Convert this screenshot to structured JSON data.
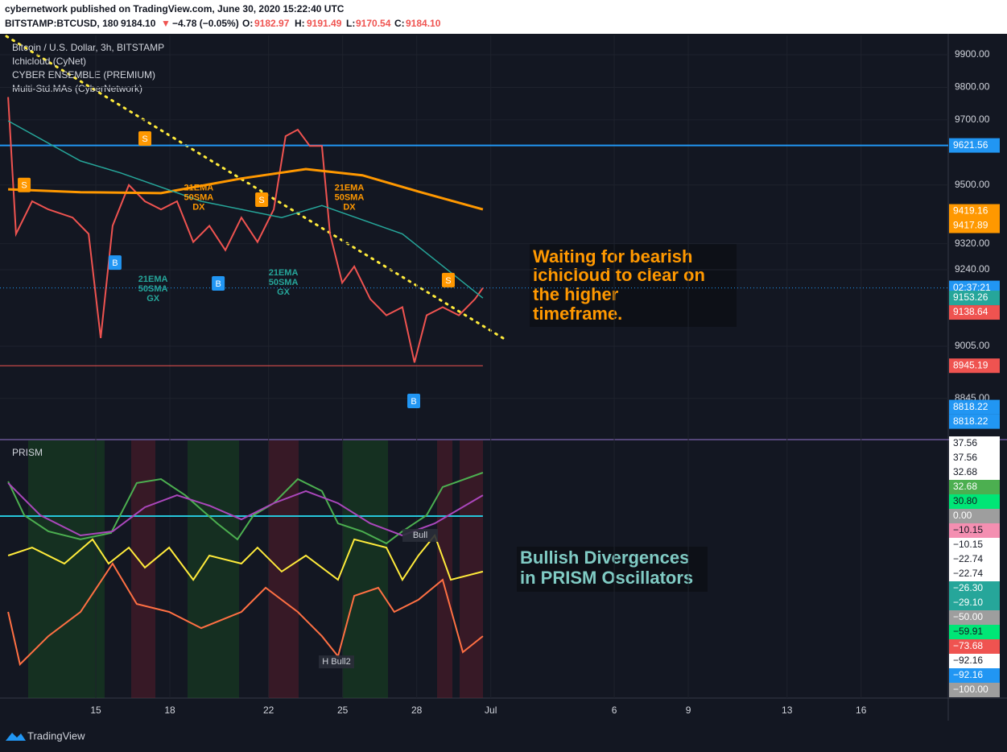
{
  "header": {
    "publisher": "cybernetwork published on TradingView.com, June 30, 2020 15:22:40 UTC",
    "symbol": "BITSTAMP:BTCUSD, 180",
    "last": "9184.10",
    "arrow": "▼",
    "change": "−4.78 (−0.05%)",
    "o_label": "O:",
    "o": "9182.97",
    "h_label": "H:",
    "h": "9191.49",
    "l_label": "L:",
    "l": "9170.54",
    "c_label": "C:",
    "c": "9184.10"
  },
  "legend": [
    "Ichicloud (CyNet)",
    "CYBER ENSEMBLE (PREMIUM)",
    "Multi-Std.MAs (CyberNetwork)"
  ],
  "footer": "TradingView",
  "chart_data": [
    {
      "type": "line",
      "xlim": [
        11.12,
        49.53
      ],
      "ylim": [
        8720.8,
        9959.3
      ],
      "yticks": [
        {
          "value": 9900,
          "label": "9900.00"
        },
        {
          "value": 9800,
          "label": "9800.00"
        },
        {
          "value": 9700,
          "label": "9700.00"
        },
        {
          "value": 9500,
          "label": "9500.00"
        },
        {
          "value": 9320,
          "label": "9320.00"
        },
        {
          "value": 9240,
          "label": "9240.00"
        },
        {
          "value": 9005,
          "label": "9005.00"
        },
        {
          "value": 8845,
          "label": "8845.00"
        }
      ],
      "grid": true,
      "series": [
        {
          "name": "Bitcoin / U.S. Dollar, 3h, BITSTAMP",
          "color": "#ef5350",
          "x": [
            11.45,
            11.77,
            12.42,
            13.08,
            14.06,
            14.71,
            15.2,
            15.68,
            16.34,
            16.99,
            17.64,
            18.29,
            18.95,
            19.6,
            20.25,
            20.9,
            21.55,
            22.21,
            22.69,
            23.18,
            23.67,
            24.16,
            24.49,
            24.98,
            25.47,
            26.12,
            26.77,
            27.42,
            27.91,
            28.4,
            29.05,
            29.71,
            30.36,
            30.68
          ],
          "values": [
            9770,
            9350,
            9450,
            9425,
            9400,
            9350,
            9030,
            9375,
            9500,
            9450,
            9425,
            9450,
            9325,
            9375,
            9300,
            9400,
            9325,
            9425,
            9650,
            9670,
            9620,
            9620,
            9350,
            9200,
            9250,
            9150,
            9100,
            9125,
            8955,
            9100,
            9125,
            9100,
            9150,
            9184.1
          ]
        },
        {
          "color": "#ff9800",
          "width": 3,
          "x": [
            11.45,
            14.38,
            17.64,
            20.9,
            23.51,
            25.8,
            28.07,
            30.68
          ],
          "values": [
            9487,
            9478,
            9475,
            9520,
            9549,
            9530,
            9480,
            9425
          ]
        },
        {
          "color": "#26a69a",
          "width": 1.5,
          "x": [
            11.45,
            14.38,
            16.01,
            19.27,
            22.53,
            24.16,
            27.42,
            30.68
          ],
          "values": [
            9697,
            9574,
            9537,
            9450,
            9400,
            9437,
            9350,
            9153
          ]
        }
      ],
      "levels": [
        {
          "value": 9621.56,
          "color": "#2196f3"
        },
        {
          "value": 8945.19,
          "color": "#ef5350"
        }
      ],
      "countdown": "02:37:21",
      "tags": [
        {
          "value": 9621.56,
          "label": "9621.56",
          "color": "#2196f3"
        },
        {
          "value": 9419.16,
          "label": "9419.16",
          "color": "#ff9800"
        },
        {
          "value": 9417.89,
          "label": "9417.89",
          "color": "#ff9800"
        },
        {
          "value": 9153.26,
          "label": "9153.26",
          "color": "#26a69a"
        },
        {
          "value": 9138.64,
          "label": "9138.64",
          "color": "#ef5350"
        },
        {
          "value": 8945.19,
          "label": "8945.19",
          "color": "#ef5350"
        },
        {
          "value": 8818.22,
          "label": "8818.22",
          "color": "#2196f3"
        },
        {
          "value": 8818.22,
          "label": "8818.22",
          "color": "#2196f3"
        }
      ],
      "signals": [
        {
          "label": "S",
          "x": 12.1,
          "price": 9500,
          "color": "#ff9800"
        },
        {
          "label": "S",
          "x": 16.99,
          "price": 9643,
          "color": "#ff9800"
        },
        {
          "label": "S",
          "x": 21.72,
          "price": 9455,
          "color": "#ff9800"
        },
        {
          "label": "S",
          "x": 29.28,
          "price": 9208,
          "color": "#ff9800"
        },
        {
          "label": "B",
          "x": 15.78,
          "price": 9262,
          "color": "#2196f3"
        },
        {
          "label": "B",
          "x": 19.96,
          "price": 9198,
          "color": "#2196f3"
        },
        {
          "label": "B",
          "x": 27.88,
          "price": 8837,
          "color": "#2196f3"
        }
      ],
      "cross_labels": [
        {
          "lines": [
            "21EMA",
            "50SMA",
            "DX"
          ],
          "x": 19.17,
          "price": 9490,
          "color": "#ff9800"
        },
        {
          "lines": [
            "21EMA",
            "50SMA",
            "DX"
          ],
          "x": 25.27,
          "price": 9490,
          "color": "#ff9800"
        },
        {
          "lines": [
            "21EMA",
            "50SMA",
            "GX"
          ],
          "x": 17.32,
          "price": 9210,
          "color": "#26a69a"
        },
        {
          "lines": [
            "21EMA",
            "50SMA",
            "GX"
          ],
          "x": 22.6,
          "price": 9230,
          "color": "#26a69a"
        }
      ],
      "annotation": [
        "Waiting for bearish",
        "ichicloud to clear on",
        "the higher",
        "timeframe."
      ]
    },
    {
      "type": "line",
      "title": "PRISM",
      "xlim": [
        11.12,
        49.53
      ],
      "ylim": [
        -104.6,
        43.5
      ],
      "xticks": [
        15,
        18,
        22,
        25,
        28,
        {
          "value": 31,
          "label": "Jul"
        },
        {
          "value": 36,
          "label": "6"
        },
        {
          "value": 39,
          "label": "9"
        },
        {
          "value": 43,
          "label": "13"
        },
        {
          "value": 46,
          "label": "16"
        }
      ],
      "series": [
        {
          "color": "#4caf50",
          "x": [
            11.45,
            12.1,
            13.08,
            14.38,
            15.62,
            16.66,
            17.64,
            18.62,
            19.92,
            20.74,
            21.39,
            22.21,
            23.18,
            24.16,
            24.81,
            25.79,
            26.77,
            27.42,
            28.4,
            29.05,
            30.68
          ],
          "values": [
            19.9,
            0.5,
            -8.8,
            -13.4,
            -9.7,
            19,
            21.3,
            12,
            -4.2,
            -13.4,
            0.5,
            7.4,
            21.3,
            14.4,
            -4.2,
            -8.8,
            -15.7,
            -8.8,
            0.5,
            16.7,
            25
          ]
        },
        {
          "color": "#ab47bc",
          "x": [
            11.45,
            12.75,
            14.38,
            15.68,
            16.99,
            18.29,
            19.6,
            20.9,
            22.21,
            23.51,
            24.81,
            26.12,
            27.42,
            28.73,
            30.68
          ],
          "values": [
            19,
            0.5,
            -11.1,
            -8.8,
            5.1,
            12,
            6,
            -1.9,
            7.4,
            14.4,
            7.4,
            -4.2,
            -11.1,
            -4.2,
            12
          ]
        },
        {
          "color": "#ffeb3b",
          "x": [
            11.45,
            12.42,
            13.73,
            14.87,
            15.52,
            16.34,
            16.99,
            17.97,
            18.95,
            19.6,
            20.9,
            21.55,
            22.53,
            23.51,
            24.81,
            25.47,
            26.77,
            27.42,
            28.07,
            28.73,
            29.38,
            30.68
          ],
          "values": [
            -22.7,
            -18.1,
            -27.3,
            -13.4,
            -27.3,
            -18.1,
            -29.6,
            -18.1,
            -36.6,
            -22.7,
            -27.3,
            -18.1,
            -31.9,
            -22.7,
            -36.6,
            -13.4,
            -18.1,
            -36.6,
            -22.7,
            -11.1,
            -36.6,
            -31.9
          ]
        },
        {
          "color": "#ff7043",
          "x": [
            11.45,
            11.93,
            13.08,
            14.38,
            15.68,
            16.66,
            17.97,
            19.27,
            20.9,
            21.88,
            23.18,
            24.16,
            24.81,
            25.47,
            26.44,
            27.09,
            28.07,
            29.05,
            29.87,
            30.68
          ],
          "values": [
            -55.1,
            -85.2,
            -69,
            -55.1,
            -27.3,
            -50.5,
            -55.1,
            -64.4,
            -55.1,
            -41.2,
            -55.1,
            -69,
            -80.6,
            -45.8,
            -41.2,
            -55.1,
            -48.1,
            -36.6,
            -78.2,
            -69
          ]
        }
      ],
      "levels": [
        {
          "value": 0,
          "color": "#26c6da"
        }
      ],
      "notes": [
        {
          "text": "Bull",
          "x": 28.14,
          "value": -11.1
        },
        {
          "text": "H Bull2",
          "x": 24.75,
          "value": -83.8
        }
      ],
      "tags": [
        {
          "value": 37.56,
          "label": "37.56",
          "color": "#ffffff"
        },
        {
          "value": 37.56,
          "label": "37.56",
          "color": "#ffffff"
        },
        {
          "value": 32.68,
          "label": "32.68",
          "color": "#ffffff"
        },
        {
          "value": 32.68,
          "label": "32.68",
          "color": "#4caf50"
        },
        {
          "value": 30.8,
          "label": "30.80",
          "color": "#00e676"
        },
        {
          "value": 0,
          "label": "0.00",
          "color": "#9e9e9e"
        },
        {
          "value": -10.15,
          "label": "−10.15",
          "color": "#f48fb1"
        },
        {
          "value": -10.15,
          "label": "−10.15",
          "color": "#ffffff"
        },
        {
          "value": -22.74,
          "label": "−22.74",
          "color": "#ffffff"
        },
        {
          "value": -22.74,
          "label": "−22.74",
          "color": "#ffffff"
        },
        {
          "value": -26.3,
          "label": "−26.30",
          "color": "#26a69a"
        },
        {
          "value": -29.1,
          "label": "−29.10",
          "color": "#26a69a"
        },
        {
          "value": -50,
          "label": "−50.00",
          "color": "#9e9e9e"
        },
        {
          "value": -59.91,
          "label": "−59.91",
          "color": "#00e676"
        },
        {
          "value": -73.68,
          "label": "−73.68",
          "color": "#ef5350"
        },
        {
          "value": -92.16,
          "label": "−92.16",
          "color": "#ffffff"
        },
        {
          "value": -92.16,
          "label": "−92.16",
          "color": "#2196f3"
        },
        {
          "value": -100,
          "label": "−100.00",
          "color": "#9e9e9e"
        }
      ],
      "annotation": [
        "Bullish Divergences",
        "in PRISM Oscillators"
      ]
    }
  ]
}
